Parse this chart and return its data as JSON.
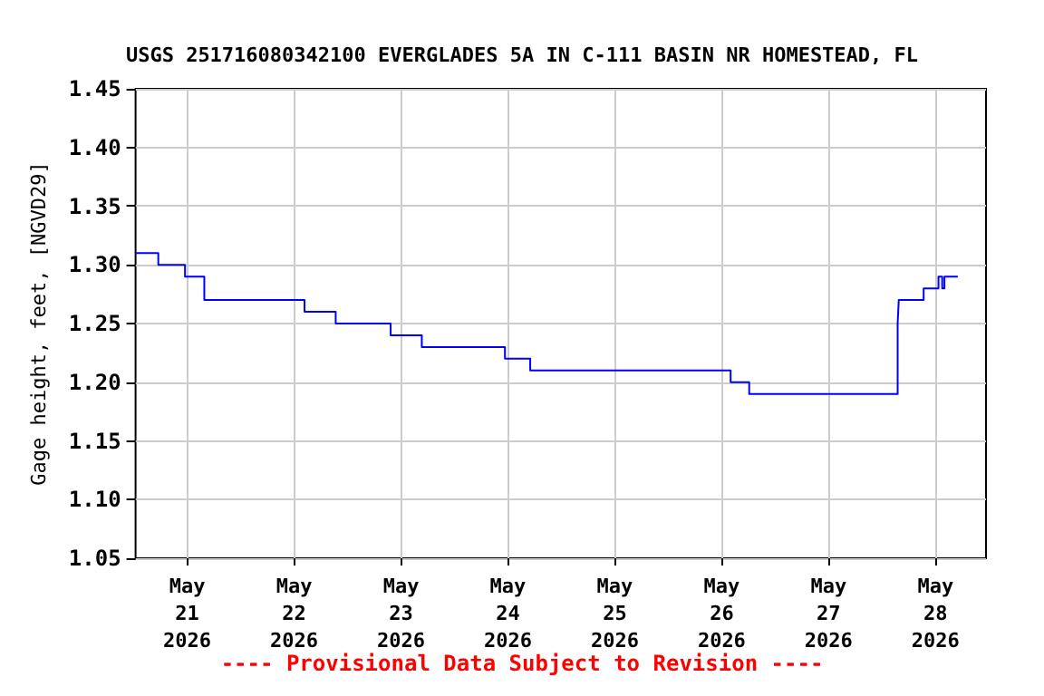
{
  "chart_data": {
    "type": "step",
    "title": "USGS 251716080342100 EVERGLADES 5A IN C-111 BASIN NR HOMESTEAD, FL",
    "ylabel": "Gage height, feet, [NGVD29]",
    "annotations": [
      "---- Provisional Data Subject to Revision ----"
    ],
    "x": [
      "2026-05-20T12:30",
      "2026-05-20T17:30",
      "2026-05-20T23:30",
      "2026-05-21T03:50",
      "2026-05-22T02:20",
      "2026-05-22T09:20",
      "2026-05-22T21:40",
      "2026-05-23T04:40",
      "2026-05-23T23:20",
      "2026-05-24T05:00",
      "2026-05-26T02:00",
      "2026-05-26T06:10",
      "2026-05-27T15:30",
      "2026-05-27T15:45",
      "2026-05-27T21:20",
      "2026-05-28T00:40",
      "2026-05-28T01:30",
      "2026-05-28T02:00",
      "2026-05-28T05:00"
    ],
    "series": [
      {
        "color": "#0000ff",
        "values": [
          1.31,
          1.3,
          1.29,
          1.27,
          1.26,
          1.25,
          1.24,
          1.23,
          1.22,
          1.21,
          1.2,
          1.19,
          1.25,
          1.27,
          1.28,
          1.29,
          1.28,
          1.29,
          1.29
        ]
      }
    ],
    "xlim": [
      "2026-05-20T12:24",
      "2026-05-28T11:20"
    ],
    "xticks": [
      {
        "value": "2026-05-21",
        "label": "May\n21\n2026"
      },
      {
        "value": "2026-05-22",
        "label": "May\n22\n2026"
      },
      {
        "value": "2026-05-23",
        "label": "May\n23\n2026"
      },
      {
        "value": "2026-05-24",
        "label": "May\n24\n2026"
      },
      {
        "value": "2026-05-25",
        "label": "May\n25\n2026"
      },
      {
        "value": "2026-05-26",
        "label": "May\n26\n2026"
      },
      {
        "value": "2026-05-27",
        "label": "May\n27\n2026"
      },
      {
        "value": "2026-05-28",
        "label": "May\n28\n2026"
      }
    ],
    "ylim": [
      1.05,
      1.45
    ],
    "yticks": [
      {
        "value": 1.05,
        "label": "1.05"
      },
      {
        "value": 1.1,
        "label": "1.10"
      },
      {
        "value": 1.15,
        "label": "1.15"
      },
      {
        "value": 1.2,
        "label": "1.20"
      },
      {
        "value": 1.25,
        "label": "1.25"
      },
      {
        "value": 1.3,
        "label": "1.30"
      },
      {
        "value": 1.35,
        "label": "1.35"
      },
      {
        "value": 1.4,
        "label": "1.40"
      },
      {
        "value": 1.45,
        "label": "1.45"
      }
    ],
    "grid": true
  }
}
